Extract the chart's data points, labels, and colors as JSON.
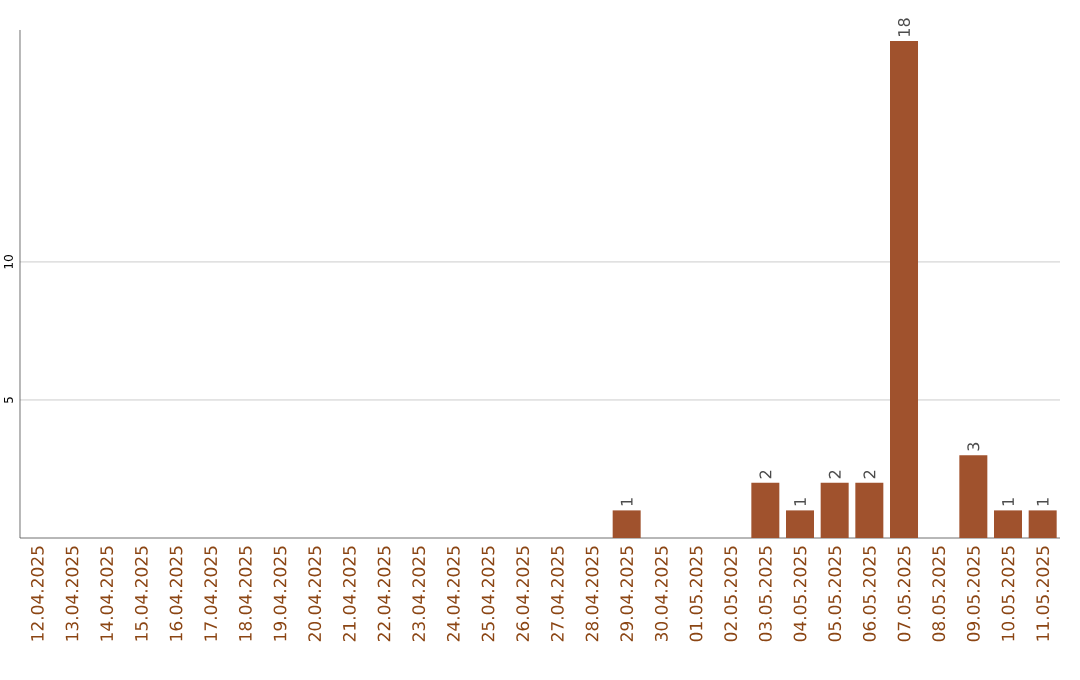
{
  "chart_data": {
    "type": "bar",
    "categories": [
      "12.04.2025",
      "13.04.2025",
      "14.04.2025",
      "15.04.2025",
      "16.04.2025",
      "17.04.2025",
      "18.04.2025",
      "19.04.2025",
      "20.04.2025",
      "21.04.2025",
      "22.04.2025",
      "23.04.2025",
      "24.04.2025",
      "25.04.2025",
      "26.04.2025",
      "27.04.2025",
      "28.04.2025",
      "29.04.2025",
      "30.04.2025",
      "01.05.2025",
      "02.05.2025",
      "03.05.2025",
      "04.05.2025",
      "05.05.2025",
      "06.05.2025",
      "07.05.2025",
      "08.05.2025",
      "09.05.2025",
      "10.05.2025",
      "11.05.2025"
    ],
    "values": [
      0,
      0,
      0,
      0,
      0,
      0,
      0,
      0,
      0,
      0,
      0,
      0,
      0,
      0,
      0,
      0,
      0,
      1,
      0,
      0,
      0,
      2,
      1,
      2,
      2,
      18,
      0,
      3,
      1,
      1
    ],
    "value_labels": [
      null,
      null,
      null,
      null,
      null,
      null,
      null,
      null,
      null,
      null,
      null,
      null,
      null,
      null,
      null,
      null,
      null,
      "1",
      null,
      null,
      null,
      "2",
      "1",
      "2",
      "2",
      "18",
      null,
      "3",
      "1",
      "1"
    ],
    "color": "#a0522d",
    "ylim": [
      0,
      18.4
    ],
    "yticks": [
      5,
      10
    ],
    "grid": "y"
  }
}
